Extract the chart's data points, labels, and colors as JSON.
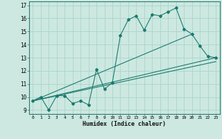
{
  "xlabel": "Humidex (Indice chaleur)",
  "ylabel": "",
  "bg_color": "#cce8e0",
  "line_color": "#1a7a6e",
  "grid_color": "#aad4cc",
  "xlim": [
    -0.5,
    23.5
  ],
  "ylim": [
    8.7,
    17.3
  ],
  "yticks": [
    9,
    10,
    11,
    12,
    13,
    14,
    15,
    16,
    17
  ],
  "xticks": [
    0,
    1,
    2,
    3,
    4,
    5,
    6,
    7,
    8,
    9,
    10,
    11,
    12,
    13,
    14,
    15,
    16,
    17,
    18,
    19,
    20,
    21,
    22,
    23
  ],
  "series1_x": [
    0,
    1,
    2,
    3,
    4,
    5,
    6,
    7,
    8,
    9,
    10,
    11,
    12,
    13,
    14,
    15,
    16,
    17,
    18,
    19,
    20,
    21,
    22,
    23
  ],
  "series1_y": [
    9.7,
    10.0,
    9.0,
    10.1,
    10.1,
    9.5,
    9.7,
    9.4,
    12.1,
    10.6,
    11.1,
    14.7,
    15.9,
    16.2,
    15.1,
    16.3,
    16.2,
    16.5,
    16.8,
    15.2,
    14.8,
    13.9,
    13.1,
    13.0
  ],
  "series2_x": [
    0,
    23
  ],
  "series2_y": [
    9.7,
    13.0
  ],
  "series3_x": [
    0,
    19
  ],
  "series3_y": [
    9.7,
    15.2
  ],
  "series4_x": [
    0,
    23
  ],
  "series4_y": [
    9.7,
    13.0
  ],
  "series5_x": [
    0,
    20
  ],
  "series5_y": [
    9.7,
    14.8
  ]
}
